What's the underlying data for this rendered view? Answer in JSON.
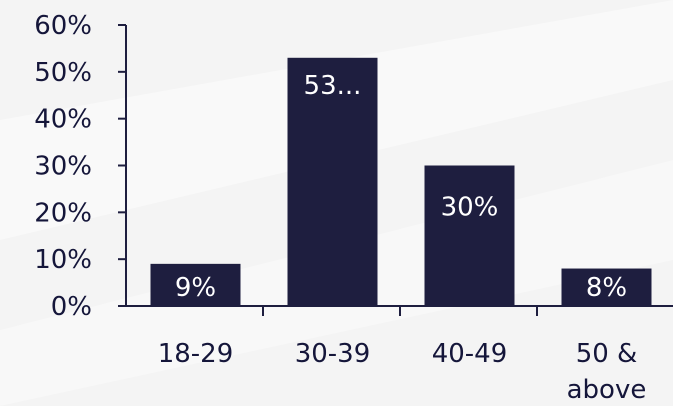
{
  "chart_data": {
    "type": "bar",
    "categories": [
      "18-29",
      "30-39",
      "40-49",
      "50 & above"
    ],
    "category_label_lines": [
      [
        "18-29"
      ],
      [
        "30-39"
      ],
      [
        "40-49"
      ],
      [
        "50 &",
        "above"
      ]
    ],
    "values": [
      9,
      53,
      30,
      8
    ],
    "data_labels": [
      "9%",
      "53...",
      "30%",
      "8%"
    ],
    "y_ticks": [
      "0%",
      "10%",
      "20%",
      "30%",
      "40%",
      "50%",
      "60%"
    ],
    "ylim": [
      0,
      60
    ],
    "grid": false,
    "bar_color": "#1e1e3f",
    "axis_color": "#1e1e3f",
    "text_color": "#15163a",
    "background_color": "#f4f4f4"
  }
}
